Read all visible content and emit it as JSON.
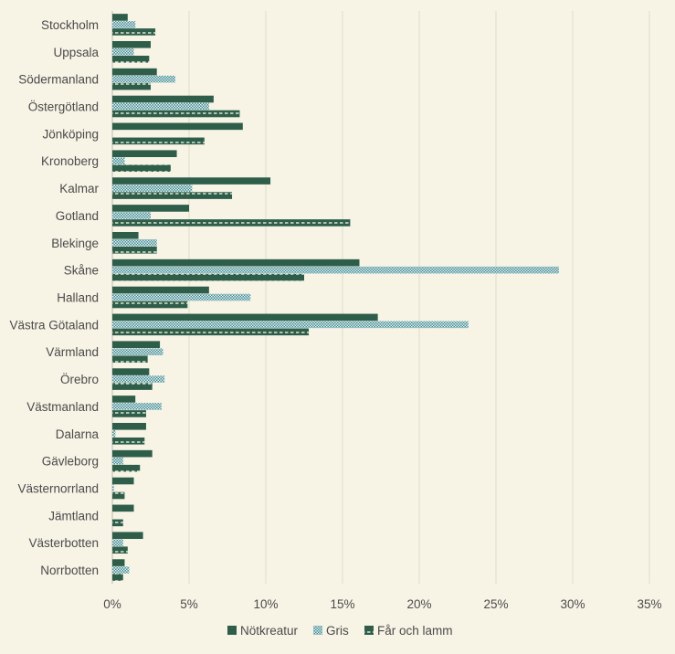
{
  "chart_data": {
    "type": "bar",
    "orientation": "horizontal",
    "categories": [
      "Stockholm",
      "Uppsala",
      "Södermanland",
      "Östergötland",
      "Jönköping",
      "Kronoberg",
      "Kalmar",
      "Gotland",
      "Blekinge",
      "Skåne",
      "Halland",
      "Västra Götaland",
      "Värmland",
      "Örebro",
      "Västmanland",
      "Dalarna",
      "Gävleborg",
      "Västernorrland",
      "Jämtland",
      "Västerbotten",
      "Norrbotten"
    ],
    "series": [
      {
        "name": "Nötkreatur",
        "color": "#2e5e4a",
        "pattern": "solid",
        "values": [
          1.0,
          2.5,
          2.9,
          6.6,
          8.5,
          4.2,
          10.3,
          5.0,
          1.7,
          16.1,
          6.3,
          17.3,
          3.1,
          2.4,
          1.5,
          2.2,
          2.6,
          1.4,
          1.4,
          2.0,
          0.8
        ]
      },
      {
        "name": "Gris",
        "color": "#2e6a78",
        "pattern": "checker",
        "values": [
          1.5,
          1.4,
          4.1,
          6.3,
          0.0,
          0.8,
          5.2,
          2.5,
          2.9,
          29.1,
          9.0,
          23.2,
          3.3,
          3.4,
          3.2,
          0.2,
          0.7,
          0.1,
          0.0,
          0.7,
          1.1
        ]
      },
      {
        "name": "Får och lamm",
        "color": "#2e5e4a",
        "pattern": "dashed",
        "values": [
          2.8,
          2.4,
          2.5,
          8.3,
          6.0,
          3.8,
          7.8,
          15.5,
          2.9,
          12.5,
          4.9,
          12.8,
          2.3,
          2.6,
          2.2,
          2.1,
          1.8,
          0.8,
          0.7,
          1.0,
          0.7
        ]
      }
    ],
    "x_ticks": [
      "0%",
      "5%",
      "10%",
      "15%",
      "20%",
      "25%",
      "30%",
      "35%"
    ],
    "xlim": [
      0,
      35
    ],
    "grid": true,
    "legend_position": "bottom"
  }
}
